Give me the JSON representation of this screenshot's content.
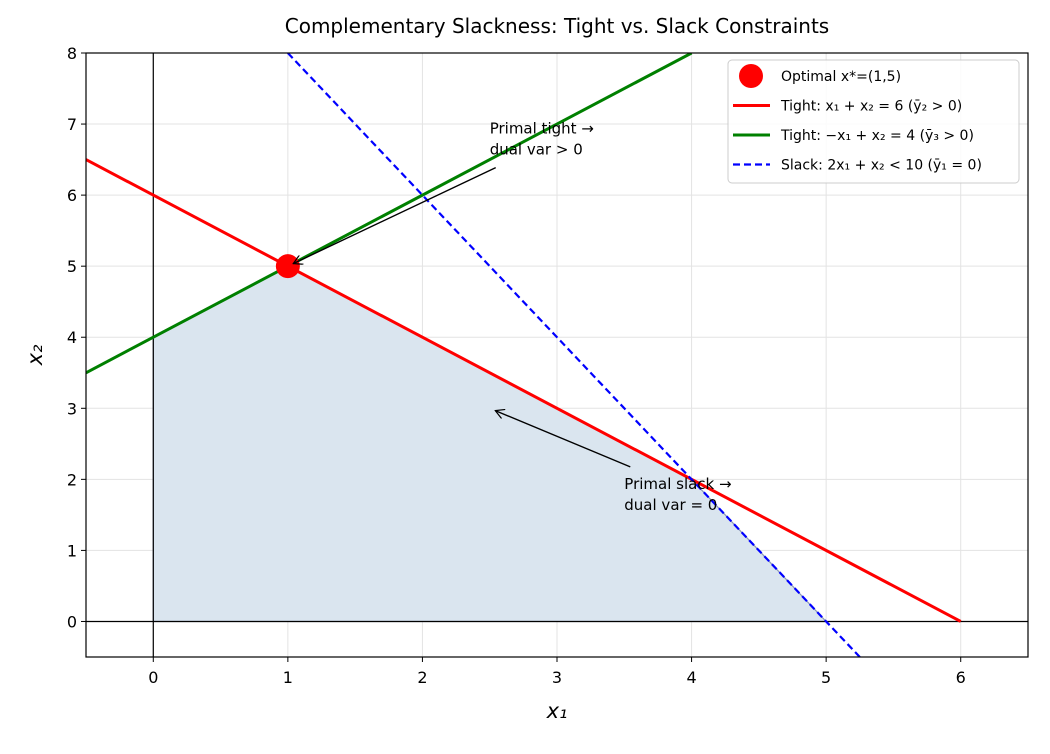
{
  "chart_data": {
    "type": "line",
    "title": "Complementary Slackness: Tight vs. Slack Constraints",
    "xlabel": "x₁",
    "ylabel": "x₂",
    "xlim": [
      -0.5,
      6.5
    ],
    "ylim": [
      -0.5,
      8
    ],
    "xticks": [
      0,
      1,
      2,
      3,
      4,
      5,
      6
    ],
    "yticks": [
      0,
      1,
      2,
      3,
      4,
      5,
      6,
      7,
      8
    ],
    "grid": true,
    "legend": "upper right",
    "axhline": 0,
    "axvline": 0,
    "region": {
      "x": [
        0,
        0,
        1,
        4,
        5
      ],
      "y": [
        0,
        4,
        5,
        2,
        0
      ],
      "color": "#dae5ef"
    },
    "series": [
      {
        "name": "Optimal x*=(1,5)",
        "color": "#ff0000",
        "marker": "circle",
        "x": [
          1
        ],
        "y": [
          5
        ]
      },
      {
        "name": "Tight: x₁ + x₂ = 6 (ȳ₂ > 0)",
        "color": "#ff0000",
        "x": [
          -0.5,
          6
        ],
        "y": [
          6.5,
          0
        ]
      },
      {
        "name": "Tight: −x₁ + x₂ = 4 (ȳ₃ > 0)",
        "color": "#008000",
        "x": [
          -0.5,
          4
        ],
        "y": [
          3.5,
          8
        ]
      },
      {
        "name": "Slack: 2x₁ + x₂ < 10 (ȳ₁ = 0)",
        "color": "#0000ff",
        "dashed": true,
        "x": [
          1,
          5.25
        ],
        "y": [
          8,
          -0.5
        ]
      }
    ],
    "annotations": [
      {
        "lines": [
          "Primal tight →",
          "dual var > 0"
        ],
        "x": 2.5,
        "y": 6.5,
        "arrow_x": 1,
        "arrow_y": 5,
        "color": "#8b0000"
      },
      {
        "lines": [
          "Primal slack →",
          "dual var = 0"
        ],
        "x": 3.5,
        "y": 1.5,
        "arrow_x": 2.5,
        "arrow_y": 3,
        "color": "#000080"
      }
    ]
  }
}
